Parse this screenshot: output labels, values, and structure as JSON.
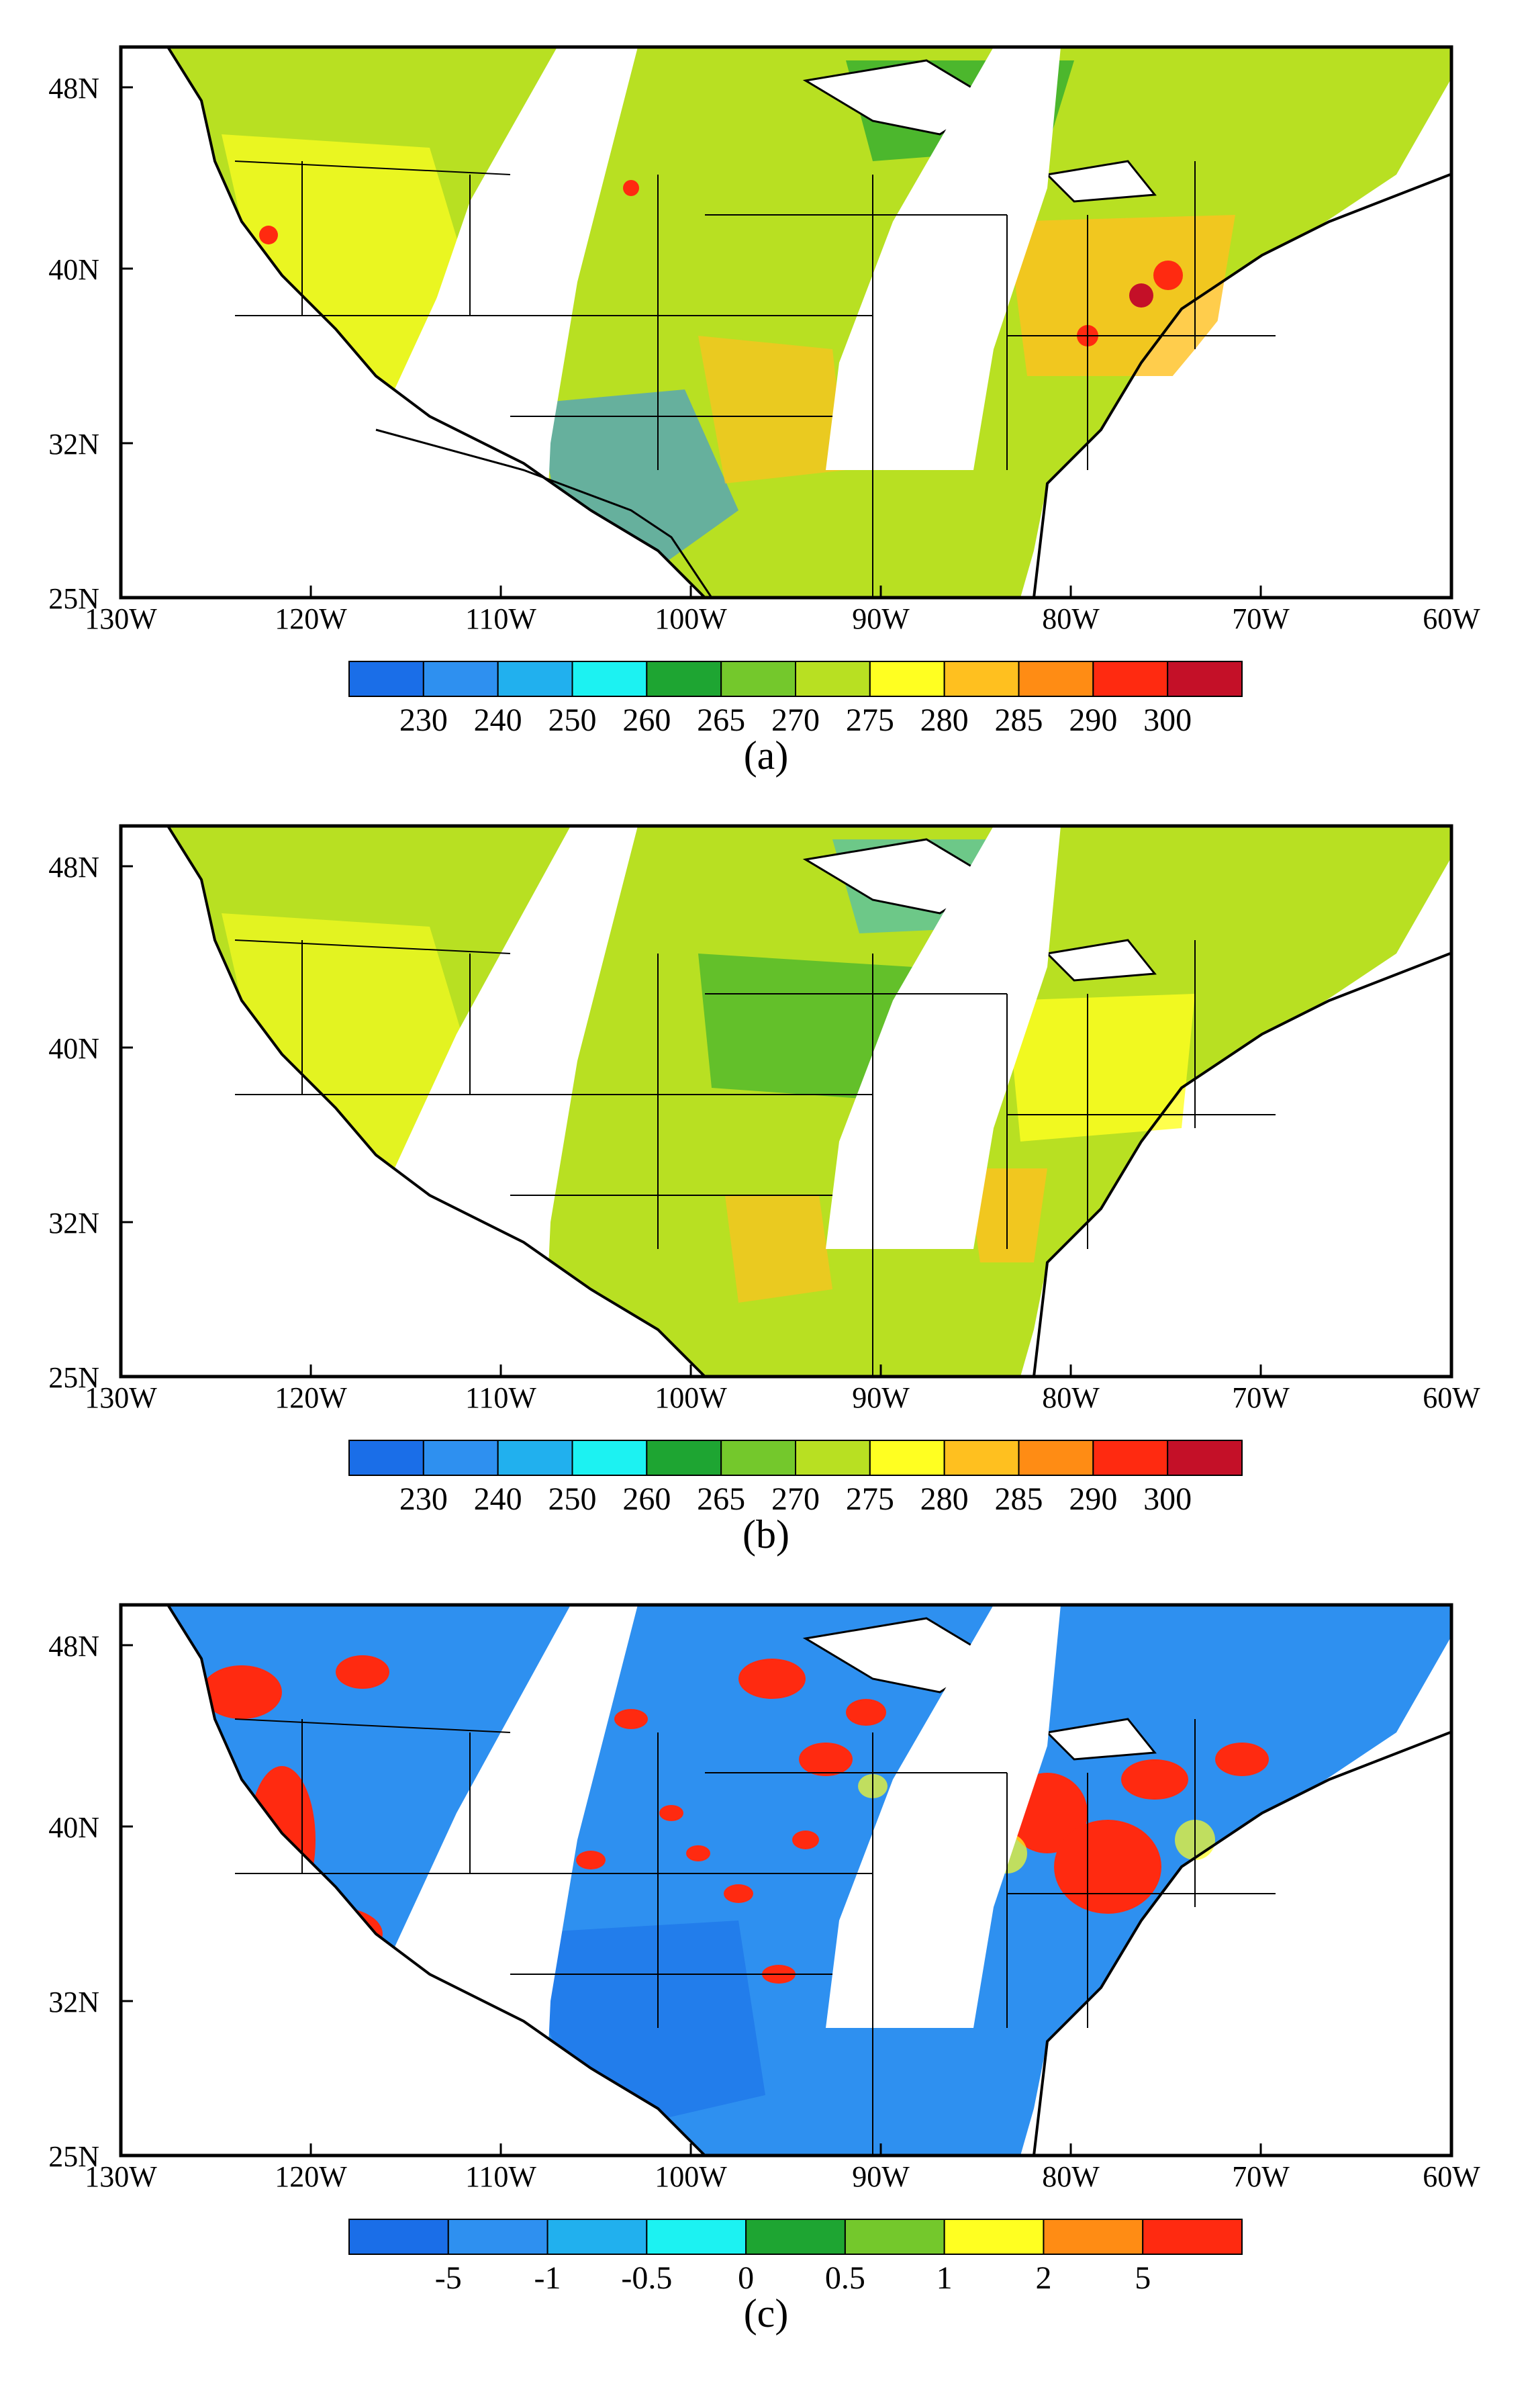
{
  "figure": {
    "x_ticks": [
      "130W",
      "120W",
      "110W",
      "100W",
      "90W",
      "80W",
      "70W",
      "60W"
    ],
    "y_ticks": [
      "48N",
      "40N",
      "32N",
      "25N"
    ],
    "panels": [
      {
        "caption": "(a)",
        "colorbar_colors": [
          "#1a6ee8",
          "#2e90f0",
          "#21b0ee",
          "#1cf2f2",
          "#1ea532",
          "#74c82c",
          "#b8e022",
          "#ffff21",
          "#ffc01f",
          "#ff8c14",
          "#ff2a10",
          "#c41028"
        ],
        "colorbar_labels": [
          "230",
          "240",
          "250",
          "260",
          "265",
          "270",
          "275",
          "280",
          "285",
          "290",
          "300"
        ]
      },
      {
        "caption": "(b)",
        "colorbar_colors": [
          "#1a6ee8",
          "#2e90f0",
          "#21b0ee",
          "#1cf2f2",
          "#1ea532",
          "#74c82c",
          "#b8e022",
          "#ffff21",
          "#ffc01f",
          "#ff8c14",
          "#ff2a10",
          "#c41028"
        ],
        "colorbar_labels": [
          "230",
          "240",
          "250",
          "260",
          "265",
          "270",
          "275",
          "280",
          "285",
          "290",
          "300"
        ]
      },
      {
        "caption": "(c)",
        "colorbar_colors": [
          "#1a6ee8",
          "#2e90f0",
          "#21b0ee",
          "#1cf2f2",
          "#1ea532",
          "#74c82c",
          "#ffff21",
          "#ff8c14",
          "#ff2a10"
        ],
        "colorbar_labels": [
          "-5",
          "-1",
          "-0.5",
          "0",
          "0.5",
          "1",
          "2",
          "5"
        ]
      }
    ]
  }
}
